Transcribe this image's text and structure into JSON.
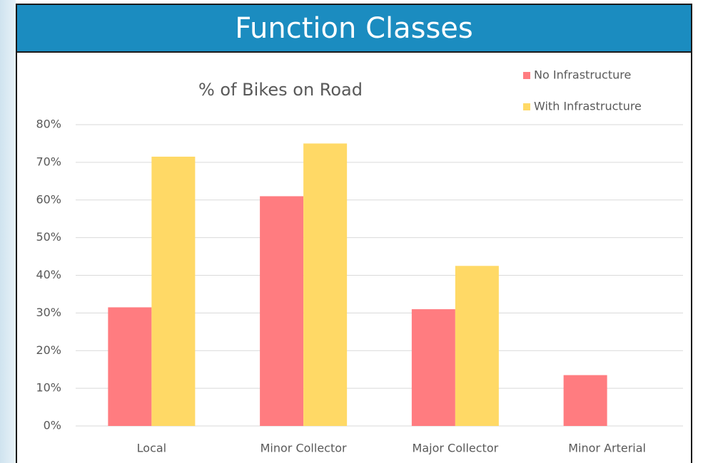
{
  "slide": {
    "title": "Function Classes"
  },
  "chart_data": {
    "type": "bar",
    "title": "% of Bikes on Road",
    "categories": [
      "Local",
      "Minor Collector",
      "Major Collector",
      "Minor Arterial"
    ],
    "series": [
      {
        "name": "No Infrastructure",
        "color": "#ff7c80",
        "values": [
          31.5,
          61,
          31,
          13.5
        ]
      },
      {
        "name": "With Infrastructure",
        "color": "#ffd966",
        "values": [
          71.5,
          75,
          42.5,
          null
        ]
      }
    ],
    "ylim": [
      0,
      80
    ],
    "yticks": [
      {
        "value": 0,
        "label": "0%"
      },
      {
        "value": 10,
        "label": "10%"
      },
      {
        "value": 20,
        "label": "20%"
      },
      {
        "value": 30,
        "label": "30%"
      },
      {
        "value": 40,
        "label": "40%"
      },
      {
        "value": 50,
        "label": "50%"
      },
      {
        "value": 60,
        "label": "60%"
      },
      {
        "value": 70,
        "label": "70%"
      },
      {
        "value": 80,
        "label": "80%"
      }
    ],
    "grid": true,
    "legend": "top-right"
  }
}
